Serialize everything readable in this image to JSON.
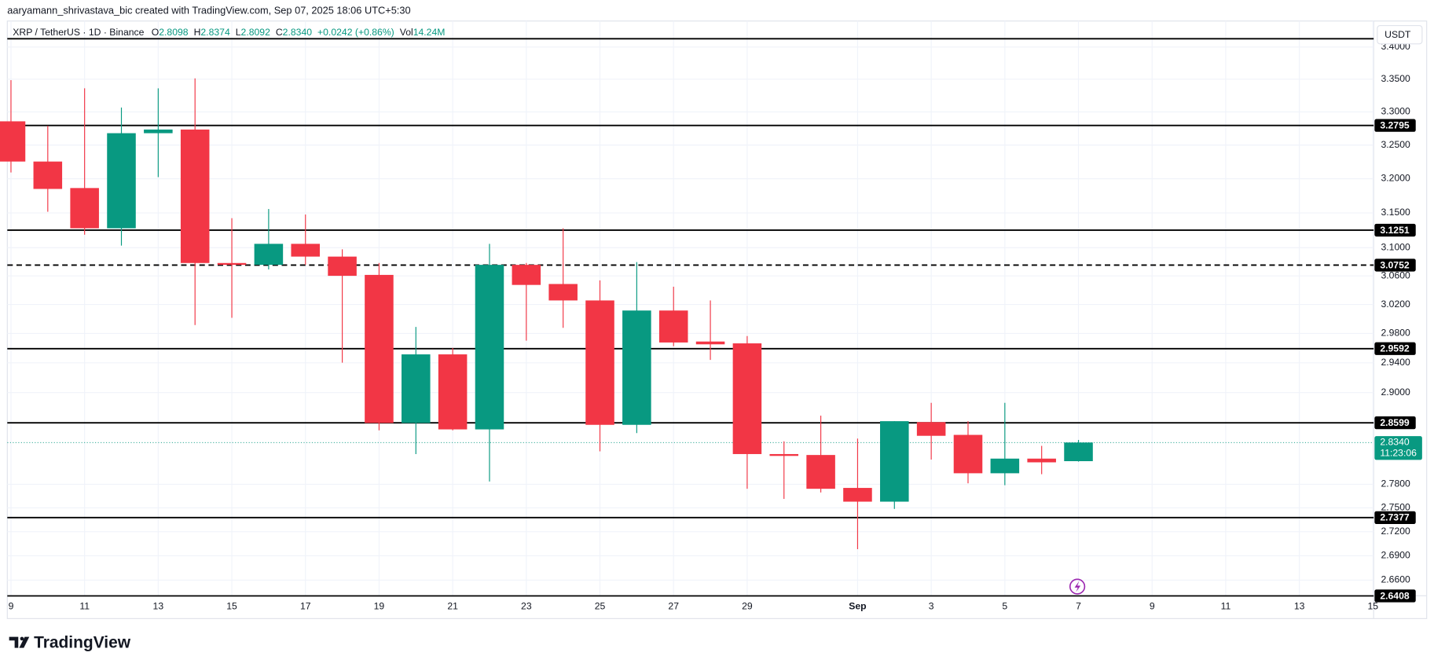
{
  "attribution": "aaryamann_shrivastava_bic created with TradingView.com, Sep 07, 2025 18:06 UTC+5:30",
  "brand": "TradingView",
  "header": {
    "symbol": "XRP / TetherUS · 1D · Binance",
    "o_label": "O",
    "o": "2.8098",
    "h_label": "H",
    "h": "2.8374",
    "l_label": "L",
    "l": "2.8092",
    "c_label": "C",
    "c": "2.8340",
    "change": "+0.0242 (+0.86%)",
    "vol_label": "Vol",
    "vol": "14.24M"
  },
  "chart_data": {
    "type": "candlestick",
    "currency": "USDT",
    "log_scale": true,
    "grid": true,
    "up_color": "#089981",
    "down_color": "#f23645",
    "categories": [
      "9",
      null,
      "11",
      null,
      "13",
      null,
      "15",
      null,
      "17",
      null,
      "19",
      null,
      "21",
      null,
      "23",
      null,
      "25",
      null,
      "27",
      null,
      "29",
      null,
      null,
      "Sep",
      null,
      "3",
      null,
      "5",
      null,
      "7",
      null,
      "9",
      null,
      "11",
      null,
      "13",
      null,
      "15"
    ],
    "open": [
      3.2857,
      3.2254,
      3.1863,
      3.1278,
      3.2678,
      3.2733,
      3.0782,
      3.0756,
      3.1055,
      3.0873,
      3.0614,
      2.8596,
      2.9514,
      2.8512,
      3.0756,
      3.0486,
      3.0256,
      2.8572,
      3.0116,
      2.9689,
      2.9664,
      2.819,
      2.8178,
      2.7754,
      2.7579,
      2.8608,
      2.844,
      2.7942,
      2.8131,
      2.8098,
      null,
      null,
      null,
      null,
      null,
      null,
      null,
      null
    ],
    "high": [
      3.3486,
      3.2789,
      3.336,
      3.3066,
      3.336,
      3.3514,
      3.1424,
      3.1557,
      3.1477,
      3.0977,
      3.0782,
      2.9889,
      2.9601,
      3.1055,
      3.0782,
      3.1278,
      3.0537,
      3.0795,
      3.0448,
      3.0256,
      2.9764,
      2.8356,
      2.8693,
      2.8392,
      2.862,
      2.8863,
      2.862,
      2.8863,
      2.8297,
      2.8374,
      null,
      null,
      null,
      null,
      null,
      null,
      null,
      null
    ],
    "low": [
      3.2092,
      3.1517,
      3.1186,
      3.1029,
      3.2024,
      2.9915,
      3.0015,
      3.0691,
      3.0756,
      2.9402,
      2.85,
      2.819,
      2.85,
      2.7836,
      2.9701,
      2.9877,
      2.8225,
      2.8464,
      2.9626,
      2.9439,
      2.7743,
      2.7614,
      2.7696,
      2.6982,
      2.7487,
      2.8119,
      2.7813,
      2.7789,
      2.793,
      2.8092,
      null,
      null,
      null,
      null,
      null,
      null,
      null,
      null
    ],
    "close": [
      3.2254,
      3.185,
      3.1278,
      3.2678,
      3.2733,
      3.0782,
      3.0756,
      3.1055,
      3.0873,
      3.0601,
      2.8596,
      2.9514,
      2.8512,
      3.0756,
      3.0473,
      3.0256,
      2.8572,
      3.0116,
      2.9676,
      2.9651,
      2.819,
      2.8166,
      2.7743,
      2.7579,
      2.862,
      2.8428,
      2.7942,
      2.8131,
      2.8083,
      2.834,
      null,
      null,
      null,
      null,
      null,
      null,
      null,
      null
    ],
    "ylim": [
      2.641,
      3.441
    ],
    "yticks": [
      {
        "value": 3.4,
        "label": "3.4000"
      },
      {
        "value": 3.35,
        "label": "3.3500"
      },
      {
        "value": 3.3,
        "label": "3.3000"
      },
      {
        "value": 3.25,
        "label": "3.2500"
      },
      {
        "value": 3.2,
        "label": "3.2000"
      },
      {
        "value": 3.15,
        "label": "3.1500"
      },
      {
        "value": 3.1,
        "label": "3.1000"
      },
      {
        "value": 3.06,
        "label": "3.0600"
      },
      {
        "value": 3.02,
        "label": "3.0200"
      },
      {
        "value": 2.98,
        "label": "2.9800"
      },
      {
        "value": 2.94,
        "label": "2.9400"
      },
      {
        "value": 2.9,
        "label": "2.9000"
      },
      {
        "value": 2.78,
        "label": "2.7800"
      },
      {
        "value": 2.75,
        "label": "2.7500"
      },
      {
        "value": 2.72,
        "label": "2.7200"
      },
      {
        "value": 2.69,
        "label": "2.6900"
      },
      {
        "value": 2.66,
        "label": "2.6600"
      }
    ],
    "top_line_level": 3.413,
    "levels": [
      {
        "value": 3.2795
      },
      {
        "value": 3.1251
      },
      {
        "value": 3.0752,
        "dashed": true
      },
      {
        "value": 2.9592
      },
      {
        "value": 2.8599
      },
      {
        "value": 2.7377
      },
      {
        "value": 2.6408
      }
    ],
    "last_price": {
      "value": 2.834,
      "label": "2.8340"
    },
    "countdown": "11:23:06"
  }
}
